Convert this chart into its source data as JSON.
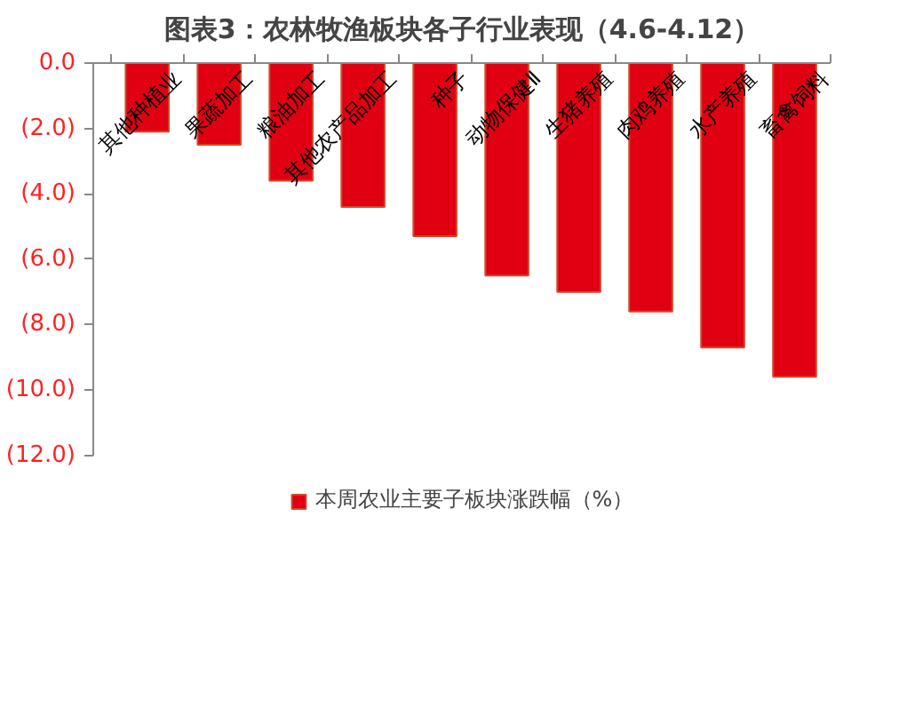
{
  "chart_data": {
    "type": "bar",
    "title": "图表3：农林牧渔板块各子行业表现（4.6-4.12）",
    "categories": [
      "其他种植业",
      "果蔬加工",
      "粮油加工",
      "其他农产品加工",
      "种子",
      "动物保健Ⅱ",
      "生猪养殖",
      "肉鸡养殖",
      "水产养殖",
      "畜禽饲料"
    ],
    "series": [
      {
        "name": "本周农业主要子板块涨跌幅（%）",
        "color": "#e00012",
        "values": [
          -2.1,
          -2.5,
          -3.6,
          -4.4,
          -5.3,
          -6.5,
          -7.0,
          -7.6,
          -8.7,
          -9.6
        ]
      }
    ],
    "ylim": [
      -12,
      0
    ],
    "yticks": [
      {
        "value": 0,
        "label": "0.0"
      },
      {
        "value": -2,
        "label": "(2.0)"
      },
      {
        "value": -4,
        "label": "(4.0)"
      },
      {
        "value": -6,
        "label": "(6.0)"
      },
      {
        "value": -8,
        "label": "(8.0)"
      },
      {
        "value": -10,
        "label": "(10.0)"
      },
      {
        "value": -12,
        "label": "(12.0)"
      }
    ],
    "grid": false,
    "legend": "bottom"
  }
}
